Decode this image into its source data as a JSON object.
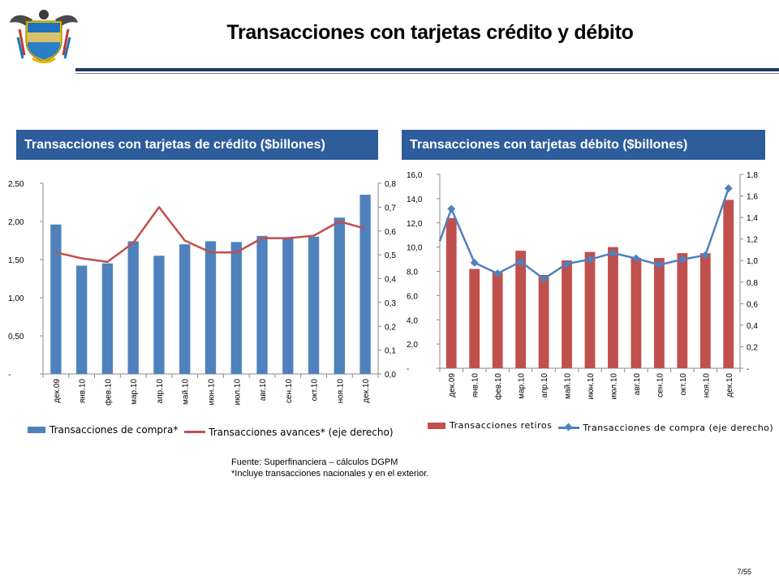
{
  "slide": {
    "title": "Transacciones con tarjetas crédito y débito",
    "page_number": "7/55",
    "source_line1": "Fuente: Superfinanciera – cálculos DGPM",
    "source_line2": "*Incluye transacciones nacionales y en el exterior."
  },
  "colors": {
    "header_bg": "#2e5d9b",
    "credit_bar": "#4f81bd",
    "credit_line": "#c0504d",
    "debit_bar": "#c0504d",
    "debit_line": "#4f81bd",
    "title_rule": "#1f3864"
  },
  "chart_data": [
    {
      "type": "bar",
      "title": "Transacciones con tarjetas de crédito ($billones)",
      "categories": [
        "дек.09",
        "янв.10",
        "фев.10",
        "мар.10",
        "апр.10",
        "май.10",
        "июн.10",
        "июл.10",
        "авг.10",
        "сен.10",
        "окт.10",
        "ноя.10",
        "дек.10"
      ],
      "series": [
        {
          "name": "Transacciones de compra*",
          "type": "bar",
          "axis": "left",
          "values": [
            1.96,
            1.42,
            1.45,
            1.74,
            1.55,
            1.7,
            1.74,
            1.73,
            1.81,
            1.78,
            1.8,
            2.05,
            2.35
          ]
        },
        {
          "name": "Transacciones avances* (eje derecho)",
          "type": "line",
          "axis": "right",
          "values": [
            0.51,
            0.485,
            0.47,
            0.55,
            0.7,
            0.56,
            0.51,
            0.51,
            0.57,
            0.57,
            0.58,
            0.64,
            0.61
          ]
        }
      ],
      "y_left": {
        "min": 0,
        "max": 2.5,
        "ticks": [
          "-",
          "0,50",
          "1,00",
          "1,50",
          "2,00",
          "2,50"
        ]
      },
      "y_right": {
        "min": 0,
        "max": 0.8,
        "ticks": [
          "0,0",
          "0,1",
          "0,2",
          "0,3",
          "0,4",
          "0,5",
          "0,6",
          "0,7",
          "0,8"
        ]
      },
      "grid": false,
      "legend": "bottom"
    },
    {
      "type": "bar",
      "title": "Transacciones con tarjetas débito ($billones)",
      "categories": [
        "дек.09",
        "янв.10",
        "фев.10",
        "мар.10",
        "апр.10",
        "май.10",
        "июн.10",
        "июл.10",
        "авг.10",
        "сен.10",
        "окт.10",
        "ноя.10",
        "дек.10"
      ],
      "series": [
        {
          "name": "Transacciones retiros",
          "type": "bar",
          "axis": "left",
          "values": [
            12.4,
            8.2,
            7.9,
            9.7,
            7.7,
            8.9,
            9.6,
            10.0,
            9.1,
            9.1,
            9.5,
            9.5,
            13.9
          ]
        },
        {
          "name": "Transacciones de compra (eje derecho)",
          "type": "line",
          "axis": "right",
          "values": [
            1.48,
            0.98,
            0.88,
            0.99,
            0.83,
            0.97,
            1.01,
            1.07,
            1.02,
            0.96,
            1.01,
            1.05,
            1.67
          ],
          "leading_value": 1.18
        }
      ],
      "y_left": {
        "min": 0,
        "max": 16,
        "ticks": [
          "-",
          "2,0",
          "4,0",
          "6,0",
          "8,0",
          "10,0",
          "12,0",
          "14,0",
          "16,0"
        ]
      },
      "y_right": {
        "min": 0,
        "max": 1.8,
        "ticks": [
          "-",
          "0,2",
          "0,4",
          "0,6",
          "0,8",
          "1,0",
          "1,2",
          "1,4",
          "1,6",
          "1,8"
        ]
      },
      "grid": false,
      "legend": "bottom"
    }
  ]
}
